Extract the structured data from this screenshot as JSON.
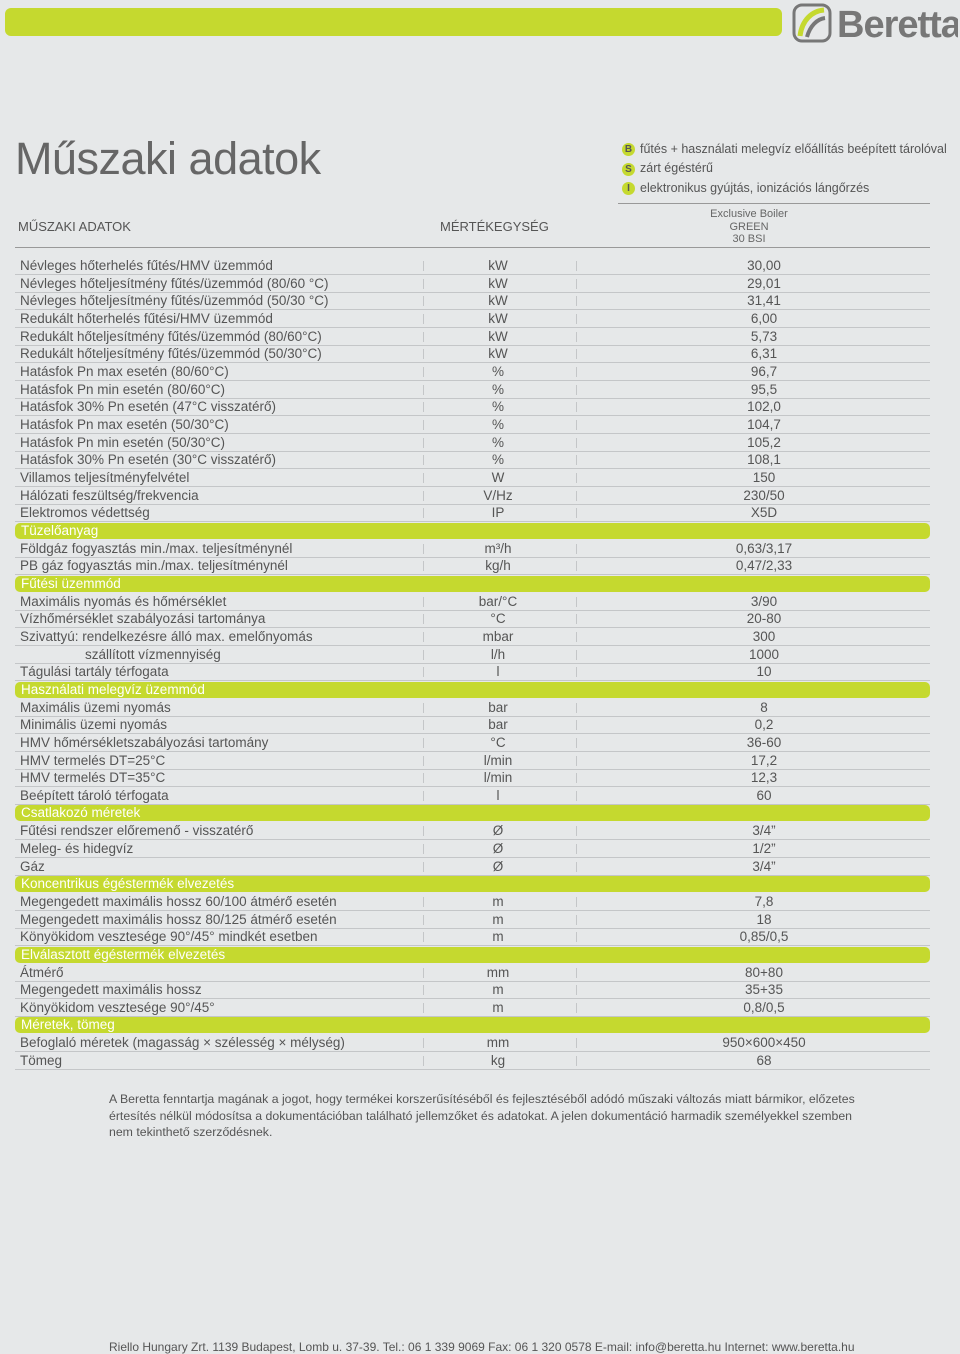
{
  "header": {
    "brand": "Beretta"
  },
  "title": "Műszaki adatok",
  "legend": [
    {
      "letter": "B",
      "text": "fűtés + használati melegvíz előállítás beépített tárolóval"
    },
    {
      "letter": "S",
      "text": "zárt égéstérű"
    },
    {
      "letter": "I",
      "text": "elektronikus gyújtás, ionizációs lángőrzés"
    }
  ],
  "table": {
    "headers": [
      "MŰSZAKI ADATOK",
      "MÉRTÉKEGYSÉG"
    ],
    "column_header": [
      "Exclusive Boiler",
      "GREEN",
      "30 BSI"
    ],
    "rows": [
      {
        "label": "Névleges hőterhelés fűtés/HMV üzemmód",
        "unit": "kW",
        "value": "30,00"
      },
      {
        "label": "Névleges hőteljesítmény fűtés/üzemmód (80/60 °C)",
        "unit": "kW",
        "value": "29,01"
      },
      {
        "label": "Névleges hőteljesítmény fűtés/üzemmód (50/30 °C)",
        "unit": "kW",
        "value": "31,41"
      },
      {
        "label": "Redukált hőterhelés fűtési/HMV üzemmód",
        "unit": "kW",
        "value": "6,00"
      },
      {
        "label": "Redukált hőteljesítmény fűtés/üzemmód (80/60°C)",
        "unit": "kW",
        "value": "5,73"
      },
      {
        "label": "Redukált hőteljesítmény fűtés/üzemmód (50/30°C)",
        "unit": "kW",
        "value": "6,31"
      },
      {
        "label": "Hatásfok Pn max esetén (80/60°C)",
        "unit": "%",
        "value": "96,7"
      },
      {
        "label": "Hatásfok Pn min esetén (80/60°C)",
        "unit": "%",
        "value": "95,5"
      },
      {
        "label": "Hatásfok 30% Pn esetén (47°C visszatérő)",
        "unit": "%",
        "value": "102,0"
      },
      {
        "label": "Hatásfok Pn max esetén (50/30°C)",
        "unit": "%",
        "value": "104,7"
      },
      {
        "label": "Hatásfok Pn min esetén (50/30°C)",
        "unit": "%",
        "value": "105,2"
      },
      {
        "label": "Hatásfok 30% Pn esetén (30°C visszatérő)",
        "unit": "%",
        "value": "108,1"
      },
      {
        "label": "Villamos teljesítményfelvétel",
        "unit": "W",
        "value": "150"
      },
      {
        "label": "Hálózati feszültség/frekvencia",
        "unit": "V/Hz",
        "value": "230/50"
      },
      {
        "label": "Elektromos védettség",
        "unit": "IP",
        "value": "X5D"
      },
      {
        "section": "Tüzelőanyag"
      },
      {
        "label": "Földgáz fogyasztás min./max. teljesítménynél",
        "unit": "m³/h",
        "value": "0,63/3,17"
      },
      {
        "label": "PB gáz fogyasztás min./max. teljesítménynél",
        "unit": "kg/h",
        "value": "0,47/2,33"
      },
      {
        "section": "Fűtési üzemmód"
      },
      {
        "label": "Maximális nyomás és hőmérséklet",
        "unit": "bar/°C",
        "value": "3/90"
      },
      {
        "label": "Vízhőmérséklet szabályozási tartománya",
        "unit": "°C",
        "value": "20-80"
      },
      {
        "label": "Szivattyú: rendelkezésre álló max. emelőnyomás",
        "unit": "mbar",
        "value": "300"
      },
      {
        "label": "szállított vízmennyiség",
        "unit": "l/h",
        "value": "1000",
        "indent": true
      },
      {
        "label": "Tágulási tartály térfogata",
        "unit": "l",
        "value": "10"
      },
      {
        "section": "Használati melegvíz üzemmód"
      },
      {
        "label": "Maximális üzemi nyomás",
        "unit": "bar",
        "value": "8"
      },
      {
        "label": "Minimális üzemi nyomás",
        "unit": "bar",
        "value": "0,2"
      },
      {
        "label": "HMV hőmérsékletszabályozási tartomány",
        "unit": "°C",
        "value": "36-60"
      },
      {
        "label": "HMV termelés DT=25°C",
        "unit": "l/min",
        "value": "17,2"
      },
      {
        "label": "HMV termelés DT=35°C",
        "unit": "l/min",
        "value": "12,3"
      },
      {
        "label": "Beépített tároló térfogata",
        "unit": "l",
        "value": "60"
      },
      {
        "section": "Csatlakozó méretek"
      },
      {
        "label": "Fűtési rendszer előremenő - visszatérő",
        "unit": "Ø",
        "value": "3/4”"
      },
      {
        "label": "Meleg- és hidegvíz",
        "unit": "Ø",
        "value": "1/2”"
      },
      {
        "label": "Gáz",
        "unit": "Ø",
        "value": "3/4”"
      },
      {
        "section": "Koncentrikus égéstermék elvezetés"
      },
      {
        "label": "Megengedett maximális hossz 60/100 átmérő  esetén",
        "unit": "m",
        "value": "7,8"
      },
      {
        "label": "Megengedett maximális hossz 80/125 átmérő  esetén",
        "unit": "m",
        "value": "18"
      },
      {
        "label": "Könyökidom vesztesége 90°/45° mindkét esetben",
        "unit": "m",
        "value": "0,85/0,5"
      },
      {
        "section": "Elválasztott égéstermék elvezetés"
      },
      {
        "label": "Átmérő",
        "unit": "mm",
        "value": "80+80"
      },
      {
        "label": "Megengedett maximális hossz",
        "unit": "m",
        "value": "35+35"
      },
      {
        "label": "Könyökidom vesztesége 90°/45°",
        "unit": "m",
        "value": "0,8/0,5"
      },
      {
        "section": "Méretek, tömeg"
      },
      {
        "label": "Befoglaló méretek (magasság × szélesség × mélység)",
        "unit": "mm",
        "value": "950×600×450"
      },
      {
        "label": "Tömeg",
        "unit": "kg",
        "value": "68"
      }
    ]
  },
  "footnote": [
    "A Beretta fenntartja magának a jogot, hogy termékei korszerűsítéséből és fejlesztéséből adódó műszaki változás miatt bármikor, előzetes",
    "értesítés nélkül módosítsa a dokumentációban található jellemzőket és adatokat. A jelen dokumentáció harmadik személyekkel szemben",
    "nem tekinthető szerződésnek."
  ],
  "footer": "Riello Hungary Zrt. 1139 Budapest, Lomb u. 37-39. Tel.: 06 1 339 9069 Fax: 06 1 320 0578 E-mail: info@beretta.hu Internet: www.beretta.hu"
}
